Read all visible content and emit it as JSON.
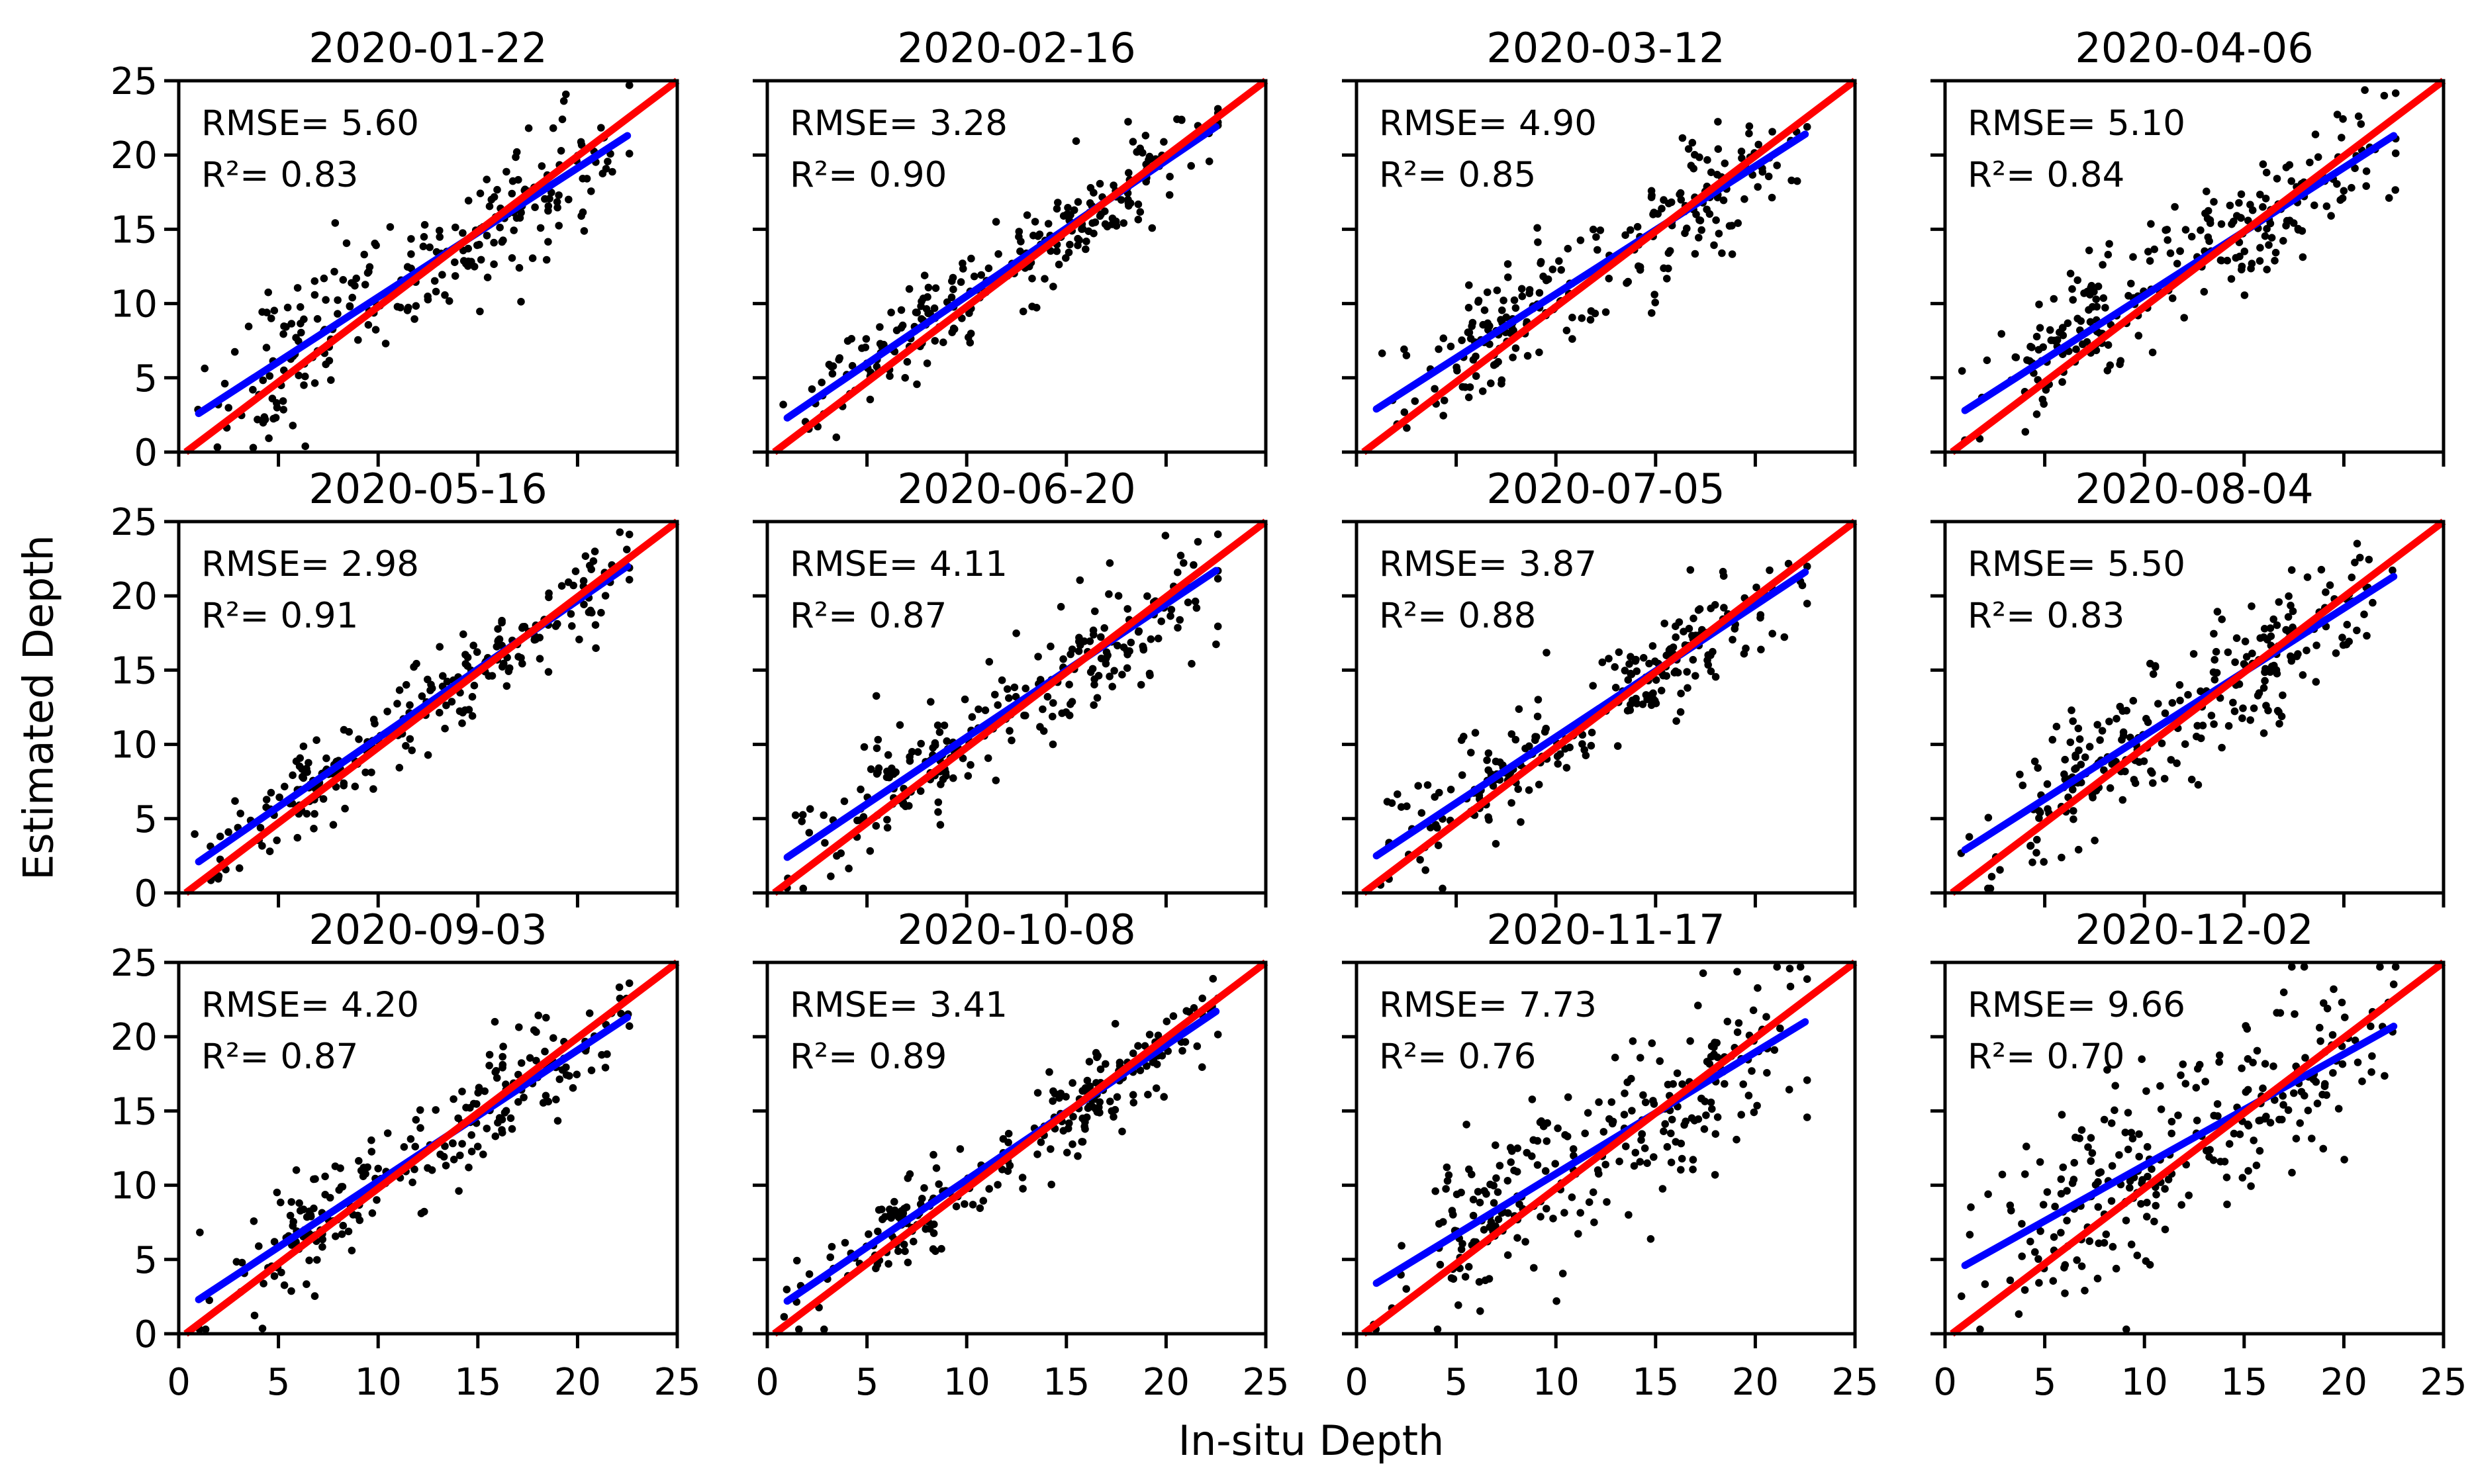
{
  "figure": {
    "xlabel": "In-situ Depth",
    "ylabel": "Estimated Depth",
    "xlim": [
      0,
      25
    ],
    "ylim": [
      0,
      25
    ],
    "x_ticks": [
      0,
      5,
      10,
      15,
      20,
      25
    ],
    "y_ticks": [
      0,
      5,
      10,
      15,
      20,
      25
    ],
    "x_tick_labels": [
      "0",
      "5",
      "10",
      "15",
      "20",
      "25"
    ],
    "y_tick_labels": [
      "0",
      "5",
      "10",
      "15",
      "20",
      "25"
    ],
    "grid": false,
    "colors": {
      "background": "#ffffff",
      "text": "#000000",
      "axis": "#000000",
      "scatter_points": "#000000",
      "identity_line": "#ff0000",
      "fit_line": "#0000ff"
    }
  },
  "chart_data": [
    {
      "type": "scatter",
      "title": "2020-01-22",
      "rmse": 5.6,
      "r2": 0.83,
      "rmse_label": "RMSE= 5.60",
      "r2_label": "R²= 0.83",
      "xlabel": "In-situ Depth",
      "ylabel": "Estimated Depth",
      "xlim": [
        0,
        25
      ],
      "ylim": [
        0,
        25
      ],
      "identity_line": {
        "x": [
          0.35,
          25
        ],
        "y": [
          0,
          25
        ]
      },
      "fit_line": {
        "x": [
          1.0,
          22.5
        ],
        "y": [
          2.6,
          21.3
        ]
      },
      "scatter_params": {
        "n": 240,
        "seed": 11,
        "noise_sd": 2.2,
        "x_range": [
          0.8,
          22.6
        ]
      }
    },
    {
      "type": "scatter",
      "title": "2020-02-16",
      "rmse": 3.28,
      "r2": 0.9,
      "rmse_label": "RMSE= 3.28",
      "r2_label": "R²= 0.90",
      "xlabel": "In-situ Depth",
      "ylabel": "Estimated Depth",
      "xlim": [
        0,
        25
      ],
      "ylim": [
        0,
        25
      ],
      "identity_line": {
        "x": [
          0.35,
          25
        ],
        "y": [
          0,
          25
        ]
      },
      "fit_line": {
        "x": [
          1.0,
          22.5
        ],
        "y": [
          2.3,
          21.9
        ]
      },
      "scatter_params": {
        "n": 240,
        "seed": 22,
        "noise_sd": 1.55,
        "x_range": [
          0.8,
          22.6
        ]
      }
    },
    {
      "type": "scatter",
      "title": "2020-03-12",
      "rmse": 4.9,
      "r2": 0.85,
      "rmse_label": "RMSE= 4.90",
      "r2_label": "R²= 0.85",
      "xlabel": "In-situ Depth",
      "ylabel": "Estimated Depth",
      "xlim": [
        0,
        25
      ],
      "ylim": [
        0,
        25
      ],
      "identity_line": {
        "x": [
          0.35,
          25
        ],
        "y": [
          0,
          25
        ]
      },
      "fit_line": {
        "x": [
          1.0,
          22.5
        ],
        "y": [
          2.9,
          21.4
        ]
      },
      "scatter_params": {
        "n": 240,
        "seed": 33,
        "noise_sd": 2.0,
        "x_range": [
          0.8,
          22.6
        ]
      }
    },
    {
      "type": "scatter",
      "title": "2020-04-06",
      "rmse": 5.1,
      "r2": 0.84,
      "rmse_label": "RMSE= 5.10",
      "r2_label": "R²= 0.84",
      "xlabel": "In-situ Depth",
      "ylabel": "Estimated Depth",
      "xlim": [
        0,
        25
      ],
      "ylim": [
        0,
        25
      ],
      "identity_line": {
        "x": [
          0.35,
          25
        ],
        "y": [
          0,
          25
        ]
      },
      "fit_line": {
        "x": [
          1.0,
          22.5
        ],
        "y": [
          2.8,
          21.3
        ]
      },
      "scatter_params": {
        "n": 240,
        "seed": 44,
        "noise_sd": 2.1,
        "x_range": [
          0.8,
          22.6
        ]
      }
    },
    {
      "type": "scatter",
      "title": "2020-05-16",
      "rmse": 2.98,
      "r2": 0.91,
      "rmse_label": "RMSE= 2.98",
      "r2_label": "R²= 0.91",
      "xlabel": "In-situ Depth",
      "ylabel": "Estimated Depth",
      "xlim": [
        0,
        25
      ],
      "ylim": [
        0,
        25
      ],
      "identity_line": {
        "x": [
          0.35,
          25
        ],
        "y": [
          0,
          25
        ]
      },
      "fit_line": {
        "x": [
          1.0,
          22.5
        ],
        "y": [
          2.1,
          22.0
        ]
      },
      "scatter_params": {
        "n": 240,
        "seed": 55,
        "noise_sd": 1.45,
        "x_range": [
          0.8,
          22.6
        ]
      }
    },
    {
      "type": "scatter",
      "title": "2020-06-20",
      "rmse": 4.11,
      "r2": 0.87,
      "rmse_label": "RMSE= 4.11",
      "r2_label": "R²= 0.87",
      "xlabel": "In-situ Depth",
      "ylabel": "Estimated Depth",
      "xlim": [
        0,
        25
      ],
      "ylim": [
        0,
        25
      ],
      "identity_line": {
        "x": [
          0.35,
          25
        ],
        "y": [
          0,
          25
        ]
      },
      "fit_line": {
        "x": [
          1.0,
          22.5
        ],
        "y": [
          2.4,
          21.7
        ]
      },
      "scatter_params": {
        "n": 240,
        "seed": 66,
        "noise_sd": 1.8,
        "x_range": [
          0.8,
          22.6
        ]
      }
    },
    {
      "type": "scatter",
      "title": "2020-07-05",
      "rmse": 3.87,
      "r2": 0.88,
      "rmse_label": "RMSE= 3.87",
      "r2_label": "R²= 0.88",
      "xlabel": "In-situ Depth",
      "ylabel": "Estimated Depth",
      "xlim": [
        0,
        25
      ],
      "ylim": [
        0,
        25
      ],
      "identity_line": {
        "x": [
          0.35,
          25
        ],
        "y": [
          0,
          25
        ]
      },
      "fit_line": {
        "x": [
          1.0,
          22.5
        ],
        "y": [
          2.5,
          21.6
        ]
      },
      "scatter_params": {
        "n": 240,
        "seed": 77,
        "noise_sd": 1.75,
        "x_range": [
          0.8,
          22.6
        ]
      }
    },
    {
      "type": "scatter",
      "title": "2020-08-04",
      "rmse": 5.5,
      "r2": 0.83,
      "rmse_label": "RMSE= 5.50",
      "r2_label": "R²= 0.83",
      "xlabel": "In-situ Depth",
      "ylabel": "Estimated Depth",
      "xlim": [
        0,
        25
      ],
      "ylim": [
        0,
        25
      ],
      "identity_line": {
        "x": [
          0.35,
          25
        ],
        "y": [
          0,
          25
        ]
      },
      "fit_line": {
        "x": [
          1.0,
          22.5
        ],
        "y": [
          2.9,
          21.3
        ]
      },
      "scatter_params": {
        "n": 250,
        "seed": 88,
        "noise_sd": 2.2,
        "x_range": [
          0.8,
          22.6
        ]
      }
    },
    {
      "type": "scatter",
      "title": "2020-09-03",
      "rmse": 4.2,
      "r2": 0.87,
      "rmse_label": "RMSE= 4.20",
      "r2_label": "R²= 0.87",
      "xlabel": "In-situ Depth",
      "ylabel": "Estimated Depth",
      "xlim": [
        0,
        25
      ],
      "ylim": [
        0,
        25
      ],
      "identity_line": {
        "x": [
          0.35,
          25
        ],
        "y": [
          0,
          25
        ]
      },
      "fit_line": {
        "x": [
          1.0,
          22.5
        ],
        "y": [
          2.3,
          21.3
        ]
      },
      "scatter_params": {
        "n": 230,
        "seed": 99,
        "noise_sd": 1.85,
        "x_range": [
          0.8,
          22.6
        ]
      }
    },
    {
      "type": "scatter",
      "title": "2020-10-08",
      "rmse": 3.41,
      "r2": 0.89,
      "rmse_label": "RMSE= 3.41",
      "r2_label": "R²= 0.89",
      "xlabel": "In-situ Depth",
      "ylabel": "Estimated Depth",
      "xlim": [
        0,
        25
      ],
      "ylim": [
        0,
        25
      ],
      "identity_line": {
        "x": [
          0.35,
          25
        ],
        "y": [
          0,
          25
        ]
      },
      "fit_line": {
        "x": [
          1.0,
          22.5
        ],
        "y": [
          2.2,
          21.7
        ]
      },
      "scatter_params": {
        "n": 240,
        "seed": 110,
        "noise_sd": 1.6,
        "x_range": [
          0.8,
          22.6
        ]
      }
    },
    {
      "type": "scatter",
      "title": "2020-11-17",
      "rmse": 7.73,
      "r2": 0.76,
      "rmse_label": "RMSE= 7.73",
      "r2_label": "R²= 0.76",
      "xlabel": "In-situ Depth",
      "ylabel": "Estimated Depth",
      "xlim": [
        0,
        25
      ],
      "ylim": [
        0,
        25
      ],
      "identity_line": {
        "x": [
          0.35,
          25
        ],
        "y": [
          0,
          25
        ]
      },
      "fit_line": {
        "x": [
          1.0,
          22.5
        ],
        "y": [
          3.4,
          21.0
        ]
      },
      "scatter_params": {
        "n": 260,
        "seed": 121,
        "noise_sd": 2.9,
        "x_range": [
          0.8,
          22.6
        ]
      }
    },
    {
      "type": "scatter",
      "title": "2020-12-02",
      "rmse": 9.66,
      "r2": 0.7,
      "rmse_label": "RMSE= 9.66",
      "r2_label": "R²= 0.70",
      "xlabel": "In-situ Depth",
      "ylabel": "Estimated Depth",
      "xlim": [
        0,
        25
      ],
      "ylim": [
        0,
        25
      ],
      "identity_line": {
        "x": [
          0.35,
          25
        ],
        "y": [
          0,
          25
        ]
      },
      "fit_line": {
        "x": [
          1.0,
          22.5
        ],
        "y": [
          4.6,
          20.7
        ]
      },
      "scatter_params": {
        "n": 260,
        "seed": 132,
        "noise_sd": 3.3,
        "x_range": [
          0.8,
          22.6
        ]
      }
    }
  ]
}
